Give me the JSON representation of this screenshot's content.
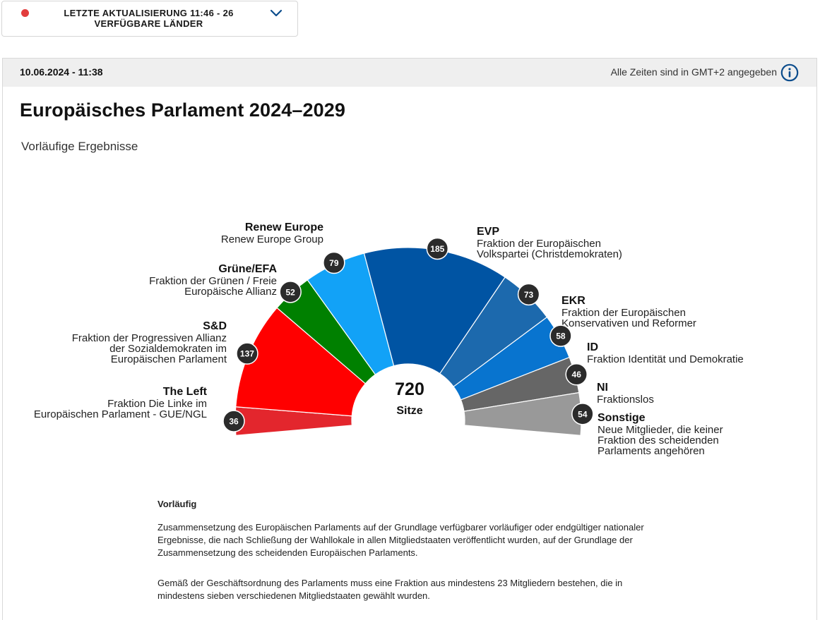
{
  "status": {
    "line1": "LETZTE AKTUALISIERUNG 11:46 - 26",
    "line2": "VERFÜGBARE LÄNDER"
  },
  "header": {
    "date": "10.06.2024 - 11:38",
    "timezone": "Alle Zeiten sind in GMT+2 angegeben"
  },
  "title": "Europäisches Parlament 2024–2029",
  "subtitle": "Vorläufige Ergebnisse",
  "chart_data": {
    "type": "pie",
    "total": 720,
    "center_label": "Sitze",
    "series": [
      {
        "name": "The Left",
        "description": [
          "Fraktion Die Linke im",
          "Europäischen Parlament - GUE/NGL"
        ],
        "value": 36,
        "color": "#e3262d"
      },
      {
        "name": "S&D",
        "description": [
          "Fraktion der Progressiven Allianz",
          "der Sozialdemokraten im",
          "Europäischen Parlament"
        ],
        "value": 137,
        "color": "#ff0000"
      },
      {
        "name": "Grüne/EFA",
        "description": [
          "Fraktion der Grünen / Freie",
          "Europäische Allianz"
        ],
        "value": 52,
        "color": "#008000"
      },
      {
        "name": "Renew Europe",
        "description": [
          "Renew Europe Group"
        ],
        "value": 79,
        "color": "#12a2f7"
      },
      {
        "name": "EVP",
        "description": [
          "Fraktion der Europäischen",
          "Volkspartei (Christdemokraten)"
        ],
        "value": 185,
        "color": "#0054a3"
      },
      {
        "name": "EKR",
        "description": [
          "Fraktion der Europäischen",
          "Konservativen und Reformer"
        ],
        "value": 73,
        "color": "#1c69ad"
      },
      {
        "name": "ID",
        "description": [
          "Fraktion Identität und Demokratie"
        ],
        "value": 58,
        "color": "#0874cf"
      },
      {
        "name": "NI",
        "description": [
          "Fraktionslos"
        ],
        "value": 46,
        "color": "#666666"
      },
      {
        "name": "Sonstige",
        "description": [
          "Neue Mitglieder, die keiner",
          "Fraktion des scheidenden",
          "Parlaments angehören"
        ],
        "value": 54,
        "color": "#999999"
      }
    ]
  },
  "notes": {
    "title": "Vorläufig",
    "p1": "Zusammensetzung des Europäischen Parlaments auf der Grundlage verfügbarer vorläufiger oder endgültiger nationaler Ergebnisse, die nach Schließung der Wahllokale in allen Mitgliedstaaten veröffentlicht wurden, auf der Grundlage der Zusammensetzung des scheidenden Europäischen Parlaments.",
    "p2": "Gemäß der Geschäftsordnung des Parlaments muss eine Fraktion aus mindestens 23 Mitgliedern bestehen, die in mindestens sieben verschiedenen Mitgliedstaaten gewählt wurden."
  }
}
